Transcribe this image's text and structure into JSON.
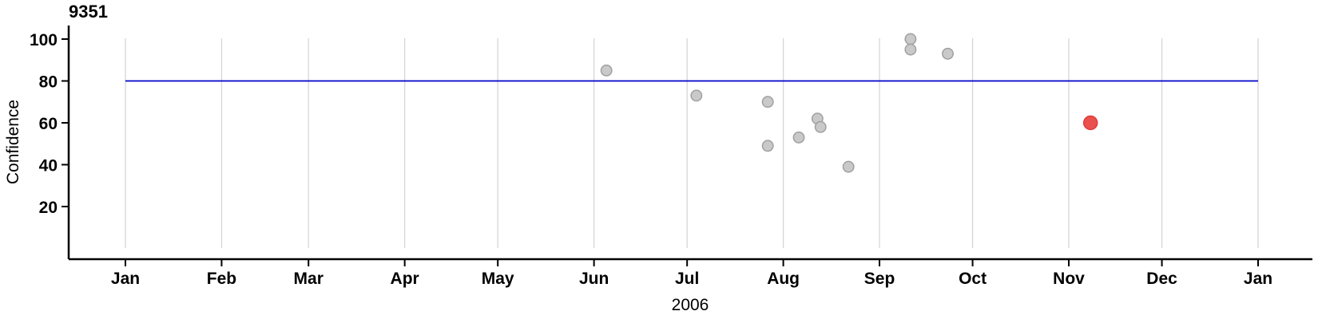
{
  "chart_data": {
    "type": "scatter",
    "title": "9351",
    "xlabel": "2006",
    "ylabel": "Confidence",
    "x_axis": {
      "start": "2006-01-01",
      "end": "2007-01-01",
      "tick_labels": [
        "Jan",
        "Feb",
        "Mar",
        "Apr",
        "May",
        "Jun",
        "Jul",
        "Aug",
        "Sep",
        "Oct",
        "Nov",
        "Dec",
        "Jan"
      ],
      "grid": true
    },
    "y_axis": {
      "ticks": [
        20,
        40,
        60,
        80,
        100
      ],
      "ylim": [
        -5,
        105
      ],
      "grid": false
    },
    "reference_line": {
      "value": 80
    },
    "points": [
      {
        "date": "2006-06-05",
        "value": 85,
        "series": "normal"
      },
      {
        "date": "2006-07-04",
        "value": 73,
        "series": "normal"
      },
      {
        "date": "2006-07-27",
        "value": 70,
        "series": "normal"
      },
      {
        "date": "2006-07-27",
        "value": 49,
        "series": "normal"
      },
      {
        "date": "2006-08-06",
        "value": 53,
        "series": "normal"
      },
      {
        "date": "2006-08-12",
        "value": 62,
        "series": "normal"
      },
      {
        "date": "2006-08-13",
        "value": 58,
        "series": "normal"
      },
      {
        "date": "2006-08-22",
        "value": 39,
        "series": "normal"
      },
      {
        "date": "2006-09-11",
        "value": 100,
        "series": "normal"
      },
      {
        "date": "2006-09-11",
        "value": 95,
        "series": "normal"
      },
      {
        "date": "2006-09-23",
        "value": 93,
        "series": "normal"
      },
      {
        "date": "2006-11-08",
        "value": 60,
        "series": "highlight"
      }
    ],
    "colors": {
      "normal_fill": "#c9c9c9",
      "normal_stroke": "#a0a0a0",
      "highlight_fill": "#ea514e",
      "highlight_stroke": "#e03a3a",
      "reference_line": "#0000cc",
      "gridline": "#d6d6d6",
      "axis": "#000000"
    }
  }
}
